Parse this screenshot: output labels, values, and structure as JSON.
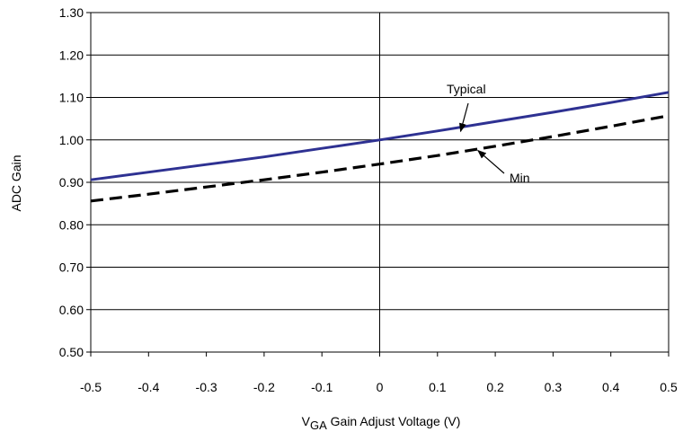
{
  "chart_data": {
    "type": "line",
    "xlabel": {
      "main": "V",
      "sub": "GA",
      "rest": " Gain Adjust Voltage (V)"
    },
    "ylabel": "ADC Gain",
    "xlim": [
      -0.5,
      0.5
    ],
    "ylim": [
      0.5,
      1.3
    ],
    "grid": true,
    "x_ticks": [
      -0.5,
      -0.4,
      -0.3,
      -0.2,
      -0.1,
      0,
      0.1,
      0.2,
      0.3,
      0.4,
      0.5
    ],
    "x_tick_labels": [
      "-0.5",
      "-0.4",
      "-0.3",
      "-0.2",
      "-0.1",
      "0",
      "0.1",
      "0.2",
      "0.3",
      "0.4",
      "0.5"
    ],
    "y_ticks": [
      0.5,
      0.6,
      0.7,
      0.8,
      0.9,
      1.0,
      1.1,
      1.2,
      1.3
    ],
    "y_tick_labels": [
      "0.50",
      "0.60",
      "0.70",
      "0.80",
      "0.90",
      "1.00",
      "1.10",
      "1.20",
      "1.30"
    ],
    "series": [
      {
        "name": "Typical",
        "style": "solid",
        "color": "#2e3192",
        "x": [
          -0.5,
          -0.4,
          -0.3,
          -0.2,
          -0.1,
          0,
          0.1,
          0.2,
          0.3,
          0.4,
          0.5
        ],
        "y": [
          0.906,
          0.924,
          0.942,
          0.96,
          0.98,
          1.0,
          1.021,
          1.043,
          1.065,
          1.088,
          1.112
        ]
      },
      {
        "name": "Min",
        "style": "dashed",
        "color": "#000000",
        "x": [
          -0.5,
          -0.4,
          -0.3,
          -0.2,
          -0.1,
          0,
          0.1,
          0.2,
          0.3,
          0.4,
          0.5
        ],
        "y": [
          0.856,
          0.872,
          0.889,
          0.906,
          0.924,
          0.943,
          0.963,
          0.985,
          1.008,
          1.032,
          1.057
        ]
      }
    ],
    "annotations": [
      {
        "text": "Typical",
        "series": "Typical",
        "arrow_to": [
          0.14,
          1.02
        ]
      },
      {
        "text": "Min",
        "series": "Min",
        "arrow_to": [
          0.17,
          0.975
        ]
      }
    ]
  }
}
